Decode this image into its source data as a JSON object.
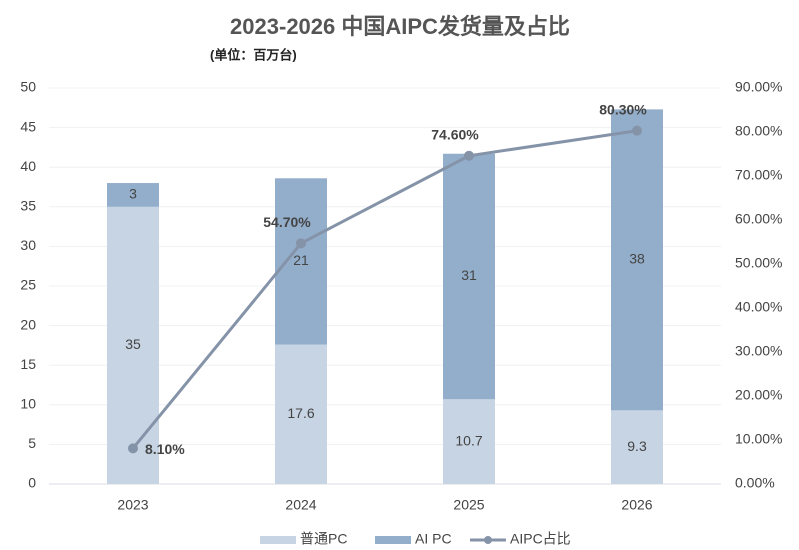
{
  "chart_data": {
    "type": "bar",
    "title": "2023-2026 中国AIPC发货量及占比",
    "subtitle": "(单位：百万台)",
    "categories": [
      "2023",
      "2024",
      "2025",
      "2026"
    ],
    "series": [
      {
        "name": "普通PC",
        "color": "#c6d4e4",
        "values": [
          35,
          17.6,
          10.7,
          9.3
        ]
      },
      {
        "name": "AI PC",
        "color": "#93aecb",
        "values": [
          3,
          21,
          31,
          38
        ]
      },
      {
        "name": "AIPC占比",
        "type": "line",
        "axis": "y2",
        "color": "#8593a8",
        "values": [
          8.1,
          54.7,
          74.6,
          80.3
        ],
        "value_labels": [
          "8.10%",
          "54.70%",
          "74.60%",
          "80.30%"
        ]
      }
    ],
    "ylim": [
      0,
      50
    ],
    "yticks": [
      0,
      5,
      10,
      15,
      20,
      25,
      30,
      35,
      40,
      45,
      50
    ],
    "y2lim": [
      0,
      90
    ],
    "y2ticks": [
      {
        "value": 0,
        "label": "0.00%"
      },
      {
        "value": 10,
        "label": "10.00%"
      },
      {
        "value": 20,
        "label": "20.00%"
      },
      {
        "value": 30,
        "label": "30.00%"
      },
      {
        "value": 40,
        "label": "40.00%"
      },
      {
        "value": 50,
        "label": "50.00%"
      },
      {
        "value": 60,
        "label": "60.00%"
      },
      {
        "value": 70,
        "label": "70.00%"
      },
      {
        "value": 80,
        "label": "80.00%"
      },
      {
        "value": 90,
        "label": "90.00%"
      }
    ],
    "grid": true,
    "legend": "bottom"
  }
}
